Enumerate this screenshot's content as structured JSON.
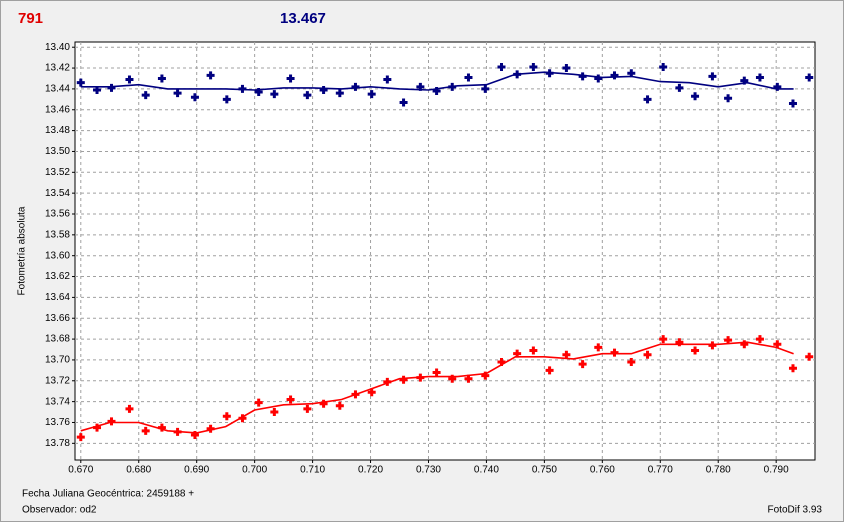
{
  "chart_data": {
    "type": "scatter",
    "header_left": "791",
    "header_left_color": "#e00000",
    "header_right": "13.467",
    "header_right_color": "#000080",
    "y_label": "Fotometría absoluta",
    "footer_left_1": "Fecha Juliana Geocéntrica: 2459188 +",
    "footer_left_2": "Observador: od2",
    "footer_right": "FotoDif 3.93",
    "grid": true,
    "xlim": [
      0.669,
      0.7967
    ],
    "ylim": [
      13.796,
      13.395
    ],
    "xticks": [
      {
        "value": 0.67,
        "label": "0.670"
      },
      {
        "value": 0.68,
        "label": "0.680"
      },
      {
        "value": 0.69,
        "label": "0.690"
      },
      {
        "value": 0.7,
        "label": "0.700"
      },
      {
        "value": 0.71,
        "label": "0.710"
      },
      {
        "value": 0.72,
        "label": "0.720"
      },
      {
        "value": 0.73,
        "label": "0.730"
      },
      {
        "value": 0.74,
        "label": "0.740"
      },
      {
        "value": 0.75,
        "label": "0.750"
      },
      {
        "value": 0.76,
        "label": "0.760"
      },
      {
        "value": 0.77,
        "label": "0.770"
      },
      {
        "value": 0.78,
        "label": "0.780"
      },
      {
        "value": 0.79,
        "label": "0.790"
      }
    ],
    "yticks": [
      {
        "value": 13.4,
        "label": "13.40"
      },
      {
        "value": 13.42,
        "label": "13.42"
      },
      {
        "value": 13.44,
        "label": "13.44"
      },
      {
        "value": 13.46,
        "label": "13.46"
      },
      {
        "value": 13.48,
        "label": "13.48"
      },
      {
        "value": 13.5,
        "label": "13.50"
      },
      {
        "value": 13.52,
        "label": "13.52"
      },
      {
        "value": 13.54,
        "label": "13.54"
      },
      {
        "value": 13.56,
        "label": "13.56"
      },
      {
        "value": 13.58,
        "label": "13.58"
      },
      {
        "value": 13.6,
        "label": "13.60"
      },
      {
        "value": 13.62,
        "label": "13.62"
      },
      {
        "value": 13.64,
        "label": "13.64"
      },
      {
        "value": 13.66,
        "label": "13.66"
      },
      {
        "value": 13.68,
        "label": "13.68"
      },
      {
        "value": 13.7,
        "label": "13.70"
      },
      {
        "value": 13.72,
        "label": "13.72"
      },
      {
        "value": 13.74,
        "label": "13.74"
      },
      {
        "value": 13.76,
        "label": "13.76"
      },
      {
        "value": 13.78,
        "label": "13.78"
      }
    ],
    "series": [
      {
        "style": "points",
        "color": "#000080",
        "x": [
          0.67,
          0.6728,
          0.6753,
          0.6784,
          0.6812,
          0.684,
          0.6867,
          0.6897,
          0.6924,
          0.6952,
          0.6979,
          0.7007,
          0.7034,
          0.7062,
          0.7091,
          0.7119,
          0.7147,
          0.7174,
          0.7202,
          0.7229,
          0.7257,
          0.7286,
          0.7314,
          0.7341,
          0.7369,
          0.7398,
          0.7426,
          0.7453,
          0.7481,
          0.7509,
          0.7538,
          0.7566,
          0.7593,
          0.7621,
          0.765,
          0.7678,
          0.7705,
          0.7733,
          0.776,
          0.779,
          0.7817,
          0.7845,
          0.7872,
          0.7902,
          0.7929,
          0.7957
        ],
        "values": [
          13.434,
          13.441,
          13.439,
          13.431,
          13.446,
          13.43,
          13.444,
          13.448,
          13.427,
          13.45,
          13.44,
          13.443,
          13.445,
          13.43,
          13.446,
          13.441,
          13.444,
          13.438,
          13.445,
          13.431,
          13.453,
          13.438,
          13.442,
          13.438,
          13.429,
          13.44,
          13.419,
          13.426,
          13.419,
          13.425,
          13.42,
          13.428,
          13.43,
          13.427,
          13.425,
          13.45,
          13.419,
          13.439,
          13.447,
          13.428,
          13.449,
          13.432,
          13.429,
          13.438,
          13.454,
          13.429
        ]
      },
      {
        "style": "points",
        "color": "#ff0000",
        "x": [
          0.67,
          0.6728,
          0.6753,
          0.6784,
          0.6812,
          0.684,
          0.6867,
          0.6897,
          0.6924,
          0.6952,
          0.6979,
          0.7007,
          0.7034,
          0.7062,
          0.7091,
          0.7119,
          0.7147,
          0.7174,
          0.7202,
          0.7229,
          0.7257,
          0.7286,
          0.7314,
          0.7341,
          0.7369,
          0.7398,
          0.7426,
          0.7453,
          0.7481,
          0.7509,
          0.7538,
          0.7566,
          0.7593,
          0.7621,
          0.765,
          0.7678,
          0.7705,
          0.7733,
          0.776,
          0.779,
          0.7817,
          0.7845,
          0.7872,
          0.7902,
          0.7929,
          0.7957
        ],
        "values": [
          13.774,
          13.765,
          13.759,
          13.747,
          13.768,
          13.765,
          13.769,
          13.772,
          13.766,
          13.754,
          13.756,
          13.741,
          13.75,
          13.738,
          13.747,
          13.742,
          13.744,
          13.733,
          13.731,
          13.721,
          13.719,
          13.717,
          13.712,
          13.718,
          13.718,
          13.715,
          13.702,
          13.694,
          13.691,
          13.71,
          13.695,
          13.704,
          13.688,
          13.693,
          13.702,
          13.695,
          13.68,
          13.683,
          13.691,
          13.686,
          13.681,
          13.685,
          13.68,
          13.685,
          13.708,
          13.697
        ]
      },
      {
        "style": "line",
        "color": "#000080",
        "x": [
          0.67,
          0.675,
          0.68,
          0.685,
          0.69,
          0.695,
          0.7,
          0.705,
          0.71,
          0.715,
          0.72,
          0.725,
          0.73,
          0.735,
          0.74,
          0.745,
          0.75,
          0.755,
          0.76,
          0.765,
          0.77,
          0.775,
          0.78,
          0.785,
          0.79,
          0.793
        ],
        "values": [
          13.438,
          13.438,
          13.436,
          13.44,
          13.44,
          13.44,
          13.441,
          13.439,
          13.439,
          13.44,
          13.438,
          13.44,
          13.441,
          13.437,
          13.436,
          13.426,
          13.424,
          13.426,
          13.429,
          13.428,
          13.433,
          13.434,
          13.438,
          13.434,
          13.44,
          13.44
        ]
      },
      {
        "style": "line",
        "color": "#ff0000",
        "x": [
          0.67,
          0.675,
          0.68,
          0.685,
          0.69,
          0.695,
          0.7,
          0.705,
          0.71,
          0.715,
          0.72,
          0.725,
          0.73,
          0.735,
          0.74,
          0.745,
          0.75,
          0.755,
          0.76,
          0.765,
          0.77,
          0.775,
          0.78,
          0.785,
          0.79,
          0.793
        ],
        "values": [
          13.768,
          13.76,
          13.76,
          13.768,
          13.77,
          13.764,
          13.748,
          13.743,
          13.742,
          13.738,
          13.728,
          13.718,
          13.716,
          13.716,
          13.713,
          13.697,
          13.697,
          13.699,
          13.694,
          13.694,
          13.685,
          13.685,
          13.685,
          13.683,
          13.688,
          13.694
        ]
      }
    ]
  }
}
